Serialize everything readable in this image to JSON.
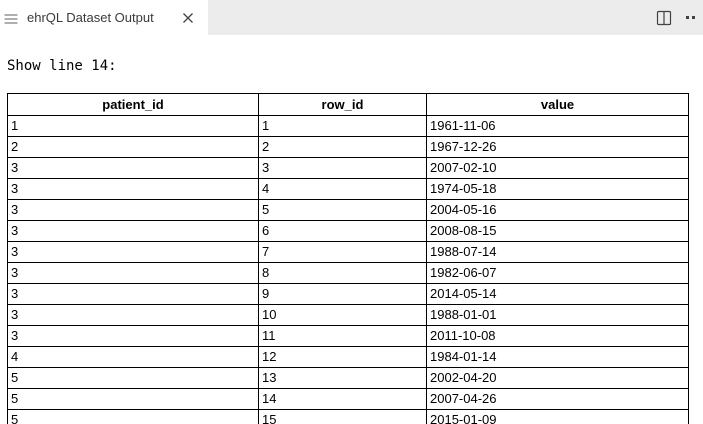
{
  "tab_bar": {
    "active_tab": {
      "label": "ehrQL Dataset Output",
      "leading_icon": "list-lines-icon",
      "close_icon": "close-icon"
    },
    "actions": {
      "split_editor_icon": "split-editor-icon",
      "more_actions_icon": "more-actions-icon"
    }
  },
  "content": {
    "heading": "Show line 14:"
  },
  "table": {
    "columns": [
      "patient_id",
      "row_id",
      "value"
    ],
    "rows": [
      [
        "1",
        "1",
        "1961-11-06"
      ],
      [
        "2",
        "2",
        "1967-12-26"
      ],
      [
        "3",
        "3",
        "2007-02-10"
      ],
      [
        "3",
        "4",
        "1974-05-18"
      ],
      [
        "3",
        "5",
        "2004-05-16"
      ],
      [
        "3",
        "6",
        "2008-08-15"
      ],
      [
        "3",
        "7",
        "1988-07-14"
      ],
      [
        "3",
        "8",
        "1982-06-07"
      ],
      [
        "3",
        "9",
        "2014-05-14"
      ],
      [
        "3",
        "10",
        "1988-01-01"
      ],
      [
        "3",
        "11",
        "2011-10-08"
      ],
      [
        "4",
        "12",
        "1984-01-14"
      ],
      [
        "5",
        "13",
        "2002-04-20"
      ],
      [
        "5",
        "14",
        "2007-04-26"
      ],
      [
        "5",
        "15",
        "2015-01-09"
      ]
    ]
  },
  "colors": {
    "tab_bar_bg": "#ececec",
    "active_tab_bg": "#ffffff",
    "tab_label": "#3b3b3b",
    "icon": "#424242",
    "leading_icon_gray": "#9b9b9b",
    "table_border": "#000000",
    "text": "#000000"
  }
}
